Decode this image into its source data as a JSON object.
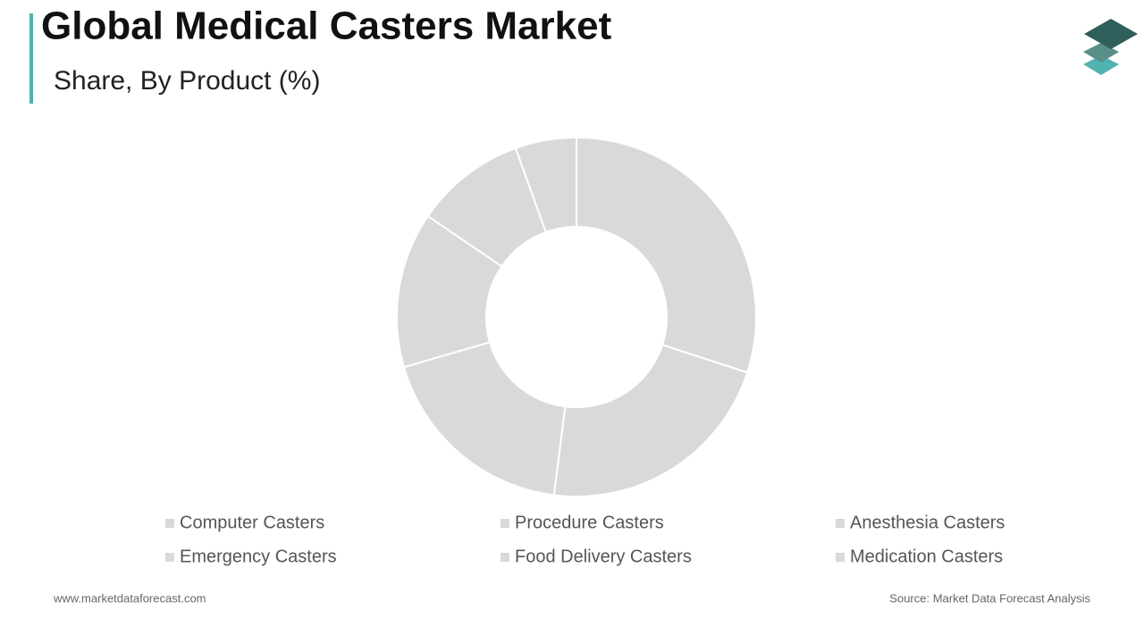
{
  "chart_data": {
    "type": "donut",
    "title": "Global Medical Casters Market",
    "subtitle": "Share, By Product (%)",
    "categories": [
      "Computer Casters",
      "Procedure Casters",
      "Anesthesia Casters",
      "Emergency Casters",
      "Food Delivery Casters",
      "Medication Casters"
    ],
    "values": [
      30,
      22,
      18.5,
      14,
      10,
      5.5
    ],
    "color": "#d9d9d9",
    "footer_left": "www.marketdataforecast.com",
    "footer_right": "Source: Market Data Forecast Analysis"
  }
}
